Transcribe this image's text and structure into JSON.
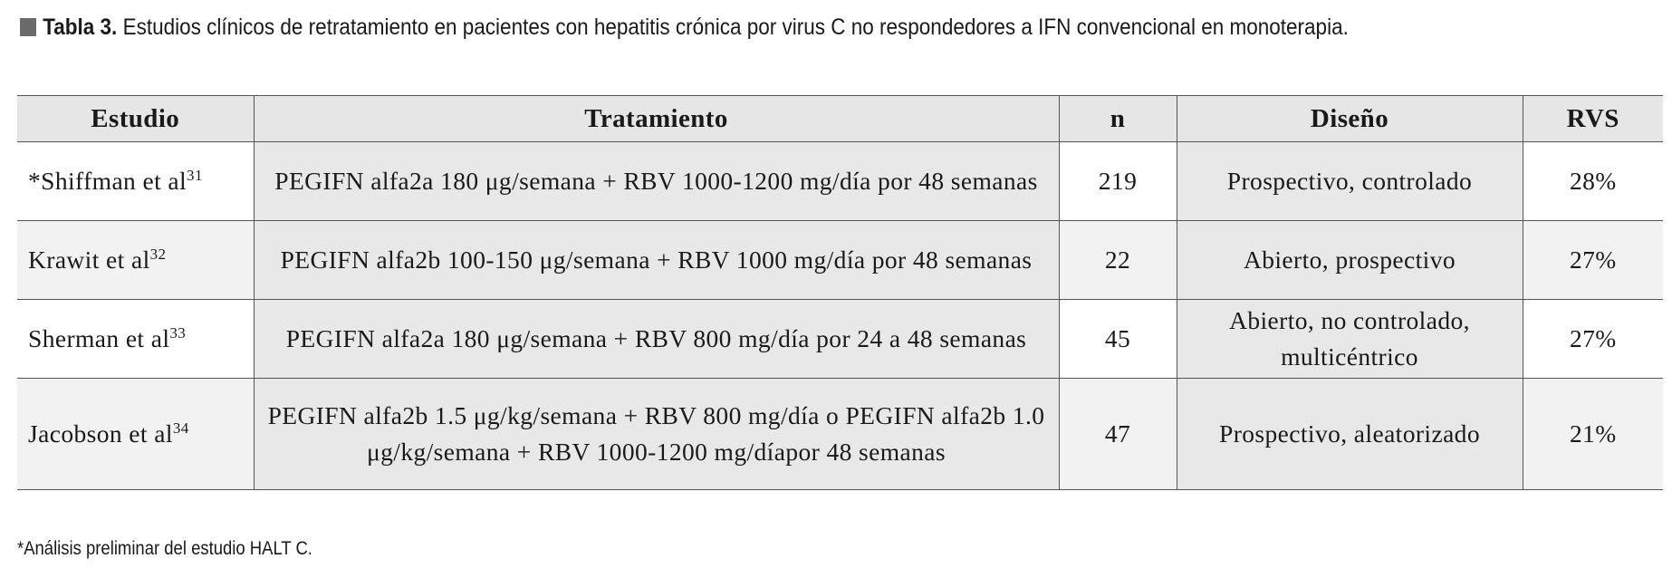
{
  "caption": {
    "label": "Tabla 3.",
    "text": "Estudios clínicos de retratamiento en pacientes con hepatitis crónica por virus C no respondedores a IFN convencional en monoterapia."
  },
  "table": {
    "headers": [
      "Estudio",
      "Tratamiento",
      "n",
      "Diseño",
      "RVS"
    ],
    "rows": [
      {
        "study": "*Shiffman et al",
        "ref": "31",
        "treatment": "PEGIFN alfa2a 180 μg/semana + RBV 1000-1200 mg/día por 48 semanas",
        "n": "219",
        "design": "Prospectivo, controlado",
        "rvs": "28%"
      },
      {
        "study": "Krawit et al",
        "ref": "32",
        "treatment": "PEGIFN alfa2b 100-150 μg/semana + RBV 1000 mg/día por 48 semanas",
        "n": "22",
        "design": "Abierto, prospectivo",
        "rvs": "27%"
      },
      {
        "study": "Sherman et al",
        "ref": "33",
        "treatment": "PEGIFN alfa2a 180 μg/semana + RBV 800 mg/día por 24 a 48 semanas",
        "n": "45",
        "design": "Abierto, no controlado, multicéntrico",
        "rvs": "27%"
      },
      {
        "study": "Jacobson et al",
        "ref": "34",
        "treatment": "PEGIFN alfa2b 1.5 μg/kg/semana + RBV 800 mg/día o PEGIFN alfa2b 1.0 μg/kg/semana + RBV 1000-1200 mg/díapor 48 semanas",
        "n": "47",
        "design": "Prospectivo, aleatorizado",
        "rvs": "21%"
      }
    ]
  },
  "footnote": "*Análisis preliminar del estudio HALT C."
}
